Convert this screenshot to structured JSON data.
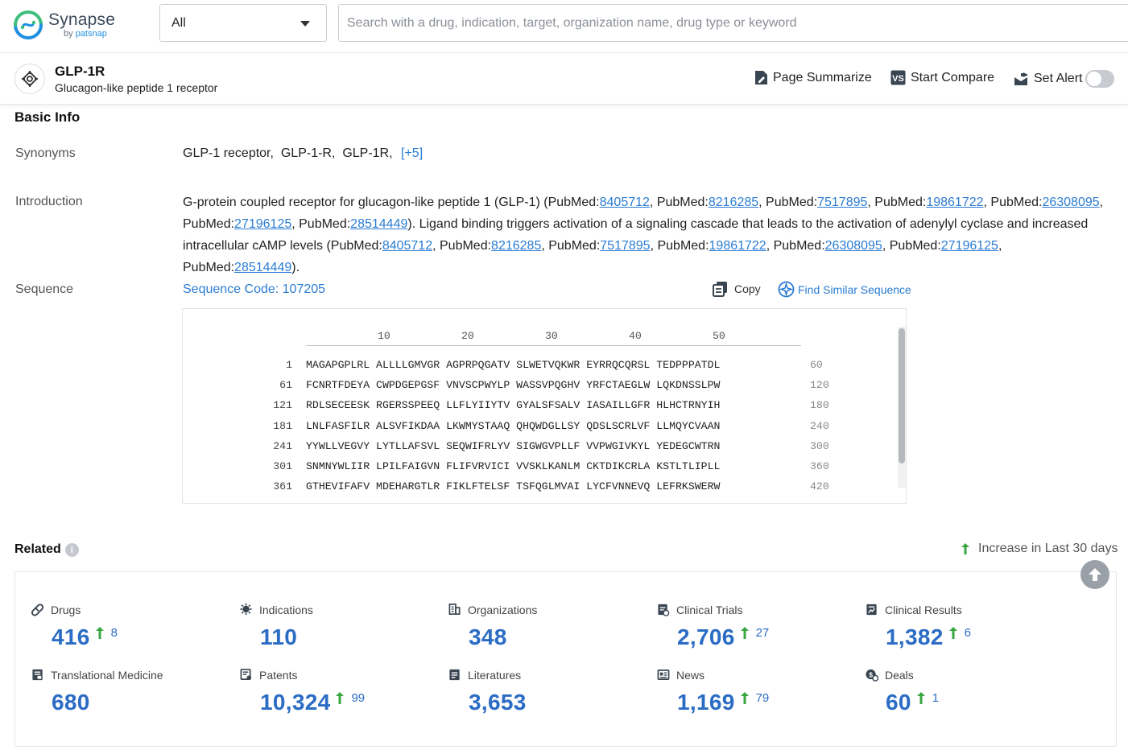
{
  "app": {
    "logo_name": "Synapse",
    "logo_by": "by",
    "logo_brand": "patsnap"
  },
  "search": {
    "scope_value": "All",
    "placeholder": "Search with a drug, indication, target, organization name, drug type or keyword",
    "value": ""
  },
  "target": {
    "name": "GLP-1R",
    "full_name": "Glucagon-like peptide 1 receptor"
  },
  "header_actions": {
    "summarize": "Page Summarize",
    "compare": "Start Compare",
    "alert": "Set Alert",
    "alert_on": false
  },
  "basic_info": {
    "title": "Basic Info",
    "synonyms_label": "Synonyms",
    "synonyms": [
      "GLP-1 receptor",
      "GLP-1-R",
      "GLP-1R"
    ],
    "synonyms_more": "[+5]",
    "introduction_label": "Introduction",
    "intro_prefix": "G-protein coupled receptor for glucagon-like peptide 1 (GLP-1) (",
    "intro_refs_1": [
      "8405712",
      "8216285",
      "7517895",
      "19861722",
      "26308095",
      "27196125",
      "28514449"
    ],
    "intro_middle": "). Ligand binding triggers activation of a signaling cascade that leads to the activation of adenylyl cyclase and increased intracellular cAMP levels (",
    "intro_refs_2": [
      "8405712",
      "8216285",
      "7517895",
      "19861722",
      "26308095",
      "27196125",
      "28514449"
    ],
    "intro_suffix": ").",
    "ref_prefix": "PubMed:",
    "sequence_label": "Sequence",
    "sequence_code": "Sequence Code: 107205",
    "copy_label": "Copy",
    "find_similar_label": "Find Similar Sequence",
    "ruler_ticks": [
      "10",
      "20",
      "30",
      "40",
      "50"
    ],
    "sequence_rows": [
      {
        "start": "1",
        "seq": "MAGAPGPLRL ALLLLGMVGR AGPRPQGATV SLWETVQKWR EYRRQCQRSL TEDPPPATDL",
        "end": "60"
      },
      {
        "start": "61",
        "seq": "FCNRTFDEYA CWPDGEPGSF VNVSCPWYLP WASSVPQGHV YRFCTAEGLW LQKDNSSLPW",
        "end": "120"
      },
      {
        "start": "121",
        "seq": "RDLSECEESK RGERSSPEEQ LLFLYIIYTV GYALSFSALV IASAILLGFR HLHCTRNYIH",
        "end": "180"
      },
      {
        "start": "181",
        "seq": "LNLFASFILR ALSVFIKDAA LKWMYSTAAQ QHQWDGLLSY QDSLSCRLVF LLMQYCVAAN",
        "end": "240"
      },
      {
        "start": "241",
        "seq": "YYWLLVEGVY LYTLLAFSVL SEQWIFRLYV SIGWGVPLLF VVPWGIVKYL YEDEGCWTRN",
        "end": "300"
      },
      {
        "start": "301",
        "seq": "SNMNYWLIIR LPILFAIGVN FLIFVRVICI VVSKLKANLM CKTDIKCRLA KSTLTLIPLL",
        "end": "360"
      },
      {
        "start": "361",
        "seq": "GTHEVIFAFV MDEHARGTLR FIKLFTELSF TSFQGLMVAI LYCFVNNEVQ LEFRKSWERW",
        "end": "420"
      }
    ]
  },
  "related": {
    "title": "Related",
    "info_glyph": "i",
    "increase_note": "Increase in Last 30 days",
    "stats": [
      {
        "label": "Drugs",
        "value": "416",
        "inc": "8",
        "icon": "pill-icon"
      },
      {
        "label": "Indications",
        "value": "110",
        "inc": "",
        "icon": "virus-icon"
      },
      {
        "label": "Organizations",
        "value": "348",
        "inc": "",
        "icon": "building-icon"
      },
      {
        "label": "Clinical Trials",
        "value": "2,706",
        "inc": "27",
        "icon": "clipboard-icon"
      },
      {
        "label": "Clinical Results",
        "value": "1,382",
        "inc": "6",
        "icon": "chart-report-icon"
      },
      {
        "label": "Translational Medicine",
        "value": "680",
        "inc": "",
        "icon": "document-icon"
      },
      {
        "label": "Patents",
        "value": "10,324",
        "inc": "99",
        "icon": "patent-icon"
      },
      {
        "label": "Literatures",
        "value": "3,653",
        "inc": "",
        "icon": "literature-icon"
      },
      {
        "label": "News",
        "value": "1,169",
        "inc": "79",
        "icon": "news-icon"
      },
      {
        "label": "Deals",
        "value": "60",
        "inc": "1",
        "icon": "deal-icon"
      }
    ]
  },
  "colors": {
    "link": "#2b7cd3",
    "stat_value": "#2b6cc4",
    "increase_arrow": "#3aa642"
  }
}
